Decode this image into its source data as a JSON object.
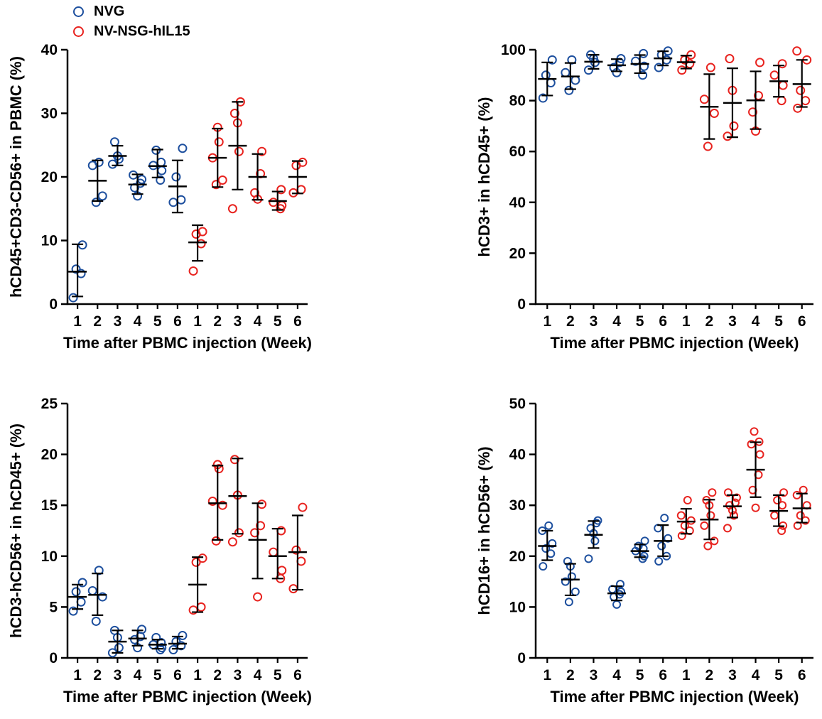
{
  "legend": {
    "items": [
      {
        "label": "NVG",
        "color": "#1d4f9e"
      },
      {
        "label": "NV-NSG-hIL15",
        "color": "#e8231f"
      }
    ]
  },
  "chart_data": [
    {
      "type": "scatter",
      "title": "",
      "ylabel": "hCD45+CD3-CD56+ in PBMC (%)",
      "xlabel": "Time after PBMC injection (Week)",
      "ylim": [
        0,
        40
      ],
      "yticks": [
        0,
        10,
        20,
        30,
        40
      ],
      "week_labels": [
        "1",
        "2",
        "3",
        "4",
        "5",
        "6",
        "1",
        "2",
        "3",
        "4",
        "5",
        "6"
      ],
      "legend_position": "top-left",
      "grid": false,
      "series": [
        {
          "name": "NVG",
          "color": "#1d4f9e",
          "groups": [
            {
              "week": 1,
              "points": [
                1.0,
                4.8,
                5.5,
                9.3
              ],
              "mean": 5.1,
              "lo": 1.2,
              "hi": 9.4
            },
            {
              "week": 2,
              "points": [
                16.0,
                17.0,
                21.8,
                22.3
              ],
              "mean": 19.4,
              "lo": 16.2,
              "hi": 22.6
            },
            {
              "week": 3,
              "points": [
                22.0,
                22.8,
                23.3,
                25.5
              ],
              "mean": 23.3,
              "lo": 21.8,
              "hi": 24.9
            },
            {
              "week": 4,
              "points": [
                17.0,
                18.3,
                19.0,
                19.6,
                20.3
              ],
              "mean": 18.8,
              "lo": 17.3,
              "hi": 20.4
            },
            {
              "week": 5,
              "points": [
                19.5,
                21.0,
                21.8,
                22.3,
                24.2
              ],
              "mean": 21.7,
              "lo": 19.9,
              "hi": 24.3
            },
            {
              "week": 6,
              "points": [
                16.0,
                16.4,
                20.0,
                24.5
              ],
              "mean": 18.5,
              "lo": 14.4,
              "hi": 22.6
            }
          ]
        },
        {
          "name": "NV-NSG-hIL15",
          "color": "#e8231f",
          "groups": [
            {
              "week": 1,
              "points": [
                5.2,
                9.5,
                11.0,
                11.4
              ],
              "mean": 9.7,
              "lo": 6.8,
              "hi": 12.4
            },
            {
              "week": 2,
              "points": [
                18.8,
                19.5,
                23.0,
                25.5,
                27.8
              ],
              "mean": 23.0,
              "lo": 18.4,
              "hi": 27.6
            },
            {
              "week": 3,
              "points": [
                15.0,
                24.0,
                28.5,
                30.0,
                31.8
              ],
              "mean": 24.9,
              "lo": 18.0,
              "hi": 31.8
            },
            {
              "week": 4,
              "points": [
                16.5,
                17.5,
                20.5,
                24.0
              ],
              "mean": 20.0,
              "lo": 16.4,
              "hi": 23.6
            },
            {
              "week": 5,
              "points": [
                15.0,
                15.5,
                16.0,
                18.0
              ],
              "mean": 16.2,
              "lo": 14.8,
              "hi": 17.7
            },
            {
              "week": 6,
              "points": [
                17.5,
                18.0,
                21.8,
                22.3
              ],
              "mean": 20.0,
              "lo": 17.4,
              "hi": 22.5
            }
          ]
        }
      ]
    },
    {
      "type": "scatter",
      "title": "",
      "ylabel": "hCD3+ in hCD45+ (%)",
      "xlabel": "Time after PBMC injection (Week)",
      "ylim": [
        0,
        100
      ],
      "yticks": [
        0,
        20,
        40,
        60,
        80,
        100
      ],
      "week_labels": [
        "1",
        "2",
        "3",
        "4",
        "5",
        "6",
        "1",
        "2",
        "3",
        "4",
        "5",
        "6"
      ],
      "grid": false,
      "series": [
        {
          "name": "NVG",
          "color": "#1d4f9e",
          "groups": [
            {
              "week": 1,
              "points": [
                81,
                87,
                90,
                96
              ],
              "mean": 88.5,
              "lo": 82.0,
              "hi": 95.0
            },
            {
              "week": 2,
              "points": [
                84,
                88,
                91,
                96
              ],
              "mean": 89.5,
              "lo": 84.5,
              "hi": 94.8
            },
            {
              "week": 3,
              "points": [
                92,
                95,
                96.5,
                98
              ],
              "mean": 95.3,
              "lo": 92.5,
              "hi": 98.0
            },
            {
              "week": 4,
              "points": [
                91,
                93,
                95,
                96.5
              ],
              "mean": 93.9,
              "lo": 91.5,
              "hi": 96.3
            },
            {
              "week": 5,
              "points": [
                90,
                93.5,
                95.5,
                98.5
              ],
              "mean": 94.4,
              "lo": 90.8,
              "hi": 97.9
            },
            {
              "week": 6,
              "points": [
                93,
                96,
                98,
                99.5
              ],
              "mean": 96.6,
              "lo": 93.8,
              "hi": 99.4
            }
          ]
        },
        {
          "name": "NV-NSG-hIL15",
          "color": "#e8231f",
          "groups": [
            {
              "week": 1,
              "points": [
                92,
                94.5,
                96,
                98
              ],
              "mean": 95.1,
              "lo": 92.6,
              "hi": 97.7
            },
            {
              "week": 2,
              "points": [
                62,
                75,
                80.5,
                93
              ],
              "mean": 77.6,
              "lo": 64.9,
              "hi": 90.4
            },
            {
              "week": 3,
              "points": [
                66,
                70,
                84,
                96.5
              ],
              "mean": 79.1,
              "lo": 65.6,
              "hi": 92.7
            },
            {
              "week": 4,
              "points": [
                68,
                75.5,
                82,
                95
              ],
              "mean": 80.1,
              "lo": 68.8,
              "hi": 91.5
            },
            {
              "week": 5,
              "points": [
                80,
                86,
                90,
                94.5
              ],
              "mean": 87.6,
              "lo": 81.5,
              "hi": 93.8
            },
            {
              "week": 6,
              "points": [
                77,
                80,
                84,
                96,
                99.5
              ],
              "mean": 86.5,
              "lo": 77.5,
              "hi": 96.0
            }
          ]
        }
      ]
    },
    {
      "type": "scatter",
      "title": "",
      "ylabel": "hCD3-hCD56+ in hCD45+ (%)",
      "xlabel": "Time after PBMC injection (Week)",
      "ylim": [
        0,
        25
      ],
      "yticks": [
        0,
        5,
        10,
        15,
        20,
        25
      ],
      "week_labels": [
        "1",
        "2",
        "3",
        "4",
        "5",
        "6",
        "1",
        "2",
        "3",
        "4",
        "5",
        "6"
      ],
      "grid": false,
      "series": [
        {
          "name": "NVG",
          "color": "#1d4f9e",
          "groups": [
            {
              "week": 1,
              "points": [
                4.6,
                5.5,
                6.5,
                7.4
              ],
              "mean": 6.0,
              "lo": 4.8,
              "hi": 7.2
            },
            {
              "week": 2,
              "points": [
                3.6,
                6.0,
                6.6,
                8.6
              ],
              "mean": 6.2,
              "lo": 4.2,
              "hi": 8.3
            },
            {
              "week": 3,
              "points": [
                0.5,
                1.0,
                2.0,
                2.7
              ],
              "mean": 1.6,
              "lo": 0.5,
              "hi": 2.7
            },
            {
              "week": 4,
              "points": [
                1.0,
                1.8,
                2.1,
                2.8
              ],
              "mean": 1.9,
              "lo": 1.2,
              "hi": 2.7
            },
            {
              "week": 5,
              "points": [
                0.8,
                1.0,
                1.3,
                1.5,
                2.0
              ],
              "mean": 1.3,
              "lo": 0.9,
              "hi": 1.8
            },
            {
              "week": 6,
              "points": [
                0.8,
                1.2,
                1.6,
                2.2
              ],
              "mean": 1.4,
              "lo": 0.9,
              "hi": 2.1
            }
          ]
        },
        {
          "name": "NV-NSG-hIL15",
          "color": "#e8231f",
          "groups": [
            {
              "week": 1,
              "points": [
                4.7,
                5.0,
                9.4,
                9.8
              ],
              "mean": 7.2,
              "lo": 4.5,
              "hi": 9.9
            },
            {
              "week": 2,
              "points": [
                11.5,
                15.0,
                15.4,
                18.6,
                19.0
              ],
              "mean": 15.2,
              "lo": 11.6,
              "hi": 18.9
            },
            {
              "week": 3,
              "points": [
                11.4,
                12.3,
                16.0,
                19.5
              ],
              "mean": 15.9,
              "lo": 12.2,
              "hi": 19.6
            },
            {
              "week": 4,
              "points": [
                6.0,
                12.3,
                13.0,
                15.1
              ],
              "mean": 11.6,
              "lo": 7.8,
              "hi": 15.2
            },
            {
              "week": 5,
              "points": [
                7.8,
                8.6,
                10.4,
                12.5
              ],
              "mean": 10.0,
              "lo": 7.8,
              "hi": 12.7
            },
            {
              "week": 6,
              "points": [
                6.8,
                9.5,
                10.6,
                14.8
              ],
              "mean": 10.4,
              "lo": 6.7,
              "hi": 14.0
            }
          ]
        }
      ]
    },
    {
      "type": "scatter",
      "title": "",
      "ylabel": "hCD16+ in hCD56+ (%)",
      "xlabel": "Time after PBMC injection (Week)",
      "ylim": [
        0,
        50
      ],
      "yticks": [
        0,
        10,
        20,
        30,
        40,
        50
      ],
      "week_labels": [
        "1",
        "2",
        "3",
        "4",
        "5",
        "6",
        "1",
        "2",
        "3",
        "4",
        "5",
        "6"
      ],
      "grid": false,
      "series": [
        {
          "name": "NVG",
          "color": "#1d4f9e",
          "groups": [
            {
              "week": 1,
              "points": [
                18,
                20.5,
                21.5,
                22.5,
                25,
                26
              ],
              "mean": 22.0,
              "lo": 19.2,
              "hi": 25.0
            },
            {
              "week": 2,
              "points": [
                11,
                13,
                15,
                16,
                18,
                19
              ],
              "mean": 15.4,
              "lo": 12.3,
              "hi": 18.5
            },
            {
              "week": 3,
              "points": [
                19.5,
                23,
                24.5,
                25.5,
                26.5,
                27
              ],
              "mean": 24.2,
              "lo": 21.6,
              "hi": 26.9
            },
            {
              "week": 4,
              "points": [
                10.5,
                12,
                12.5,
                13,
                13.5,
                14.5
              ],
              "mean": 12.7,
              "lo": 11.3,
              "hi": 14.1
            },
            {
              "week": 5,
              "points": [
                19.5,
                20,
                21,
                21.5,
                22,
                23
              ],
              "mean": 21.0,
              "lo": 19.8,
              "hi": 22.3
            },
            {
              "week": 6,
              "points": [
                19,
                20,
                22,
                23.5,
                25.5,
                27.5
              ],
              "mean": 23.0,
              "lo": 20.0,
              "hi": 26.1
            }
          ]
        },
        {
          "name": "NV-NSG-hIL15",
          "color": "#e8231f",
          "groups": [
            {
              "week": 1,
              "points": [
                24,
                25,
                26,
                27,
                28,
                31
              ],
              "mean": 26.8,
              "lo": 24.4,
              "hi": 29.3
            },
            {
              "week": 2,
              "points": [
                22,
                23,
                26,
                28,
                30,
                31,
                32.5
              ],
              "mean": 27.2,
              "lo": 23.3,
              "hi": 31.1
            },
            {
              "week": 3,
              "points": [
                25.5,
                28,
                29,
                30,
                30.5,
                31.5,
                32.5
              ],
              "mean": 29.8,
              "lo": 27.6,
              "hi": 32.0
            },
            {
              "week": 4,
              "points": [
                29.5,
                33,
                36,
                40,
                42,
                42.5,
                44.5
              ],
              "mean": 37.0,
              "lo": 31.6,
              "hi": 42.4
            },
            {
              "week": 5,
              "points": [
                25,
                26,
                28,
                30,
                31,
                32.5
              ],
              "mean": 28.9,
              "lo": 25.9,
              "hi": 32.0
            },
            {
              "week": 6,
              "points": [
                26,
                27,
                28,
                30,
                32,
                33
              ],
              "mean": 29.4,
              "lo": 26.6,
              "hi": 32.3
            }
          ]
        }
      ]
    }
  ]
}
